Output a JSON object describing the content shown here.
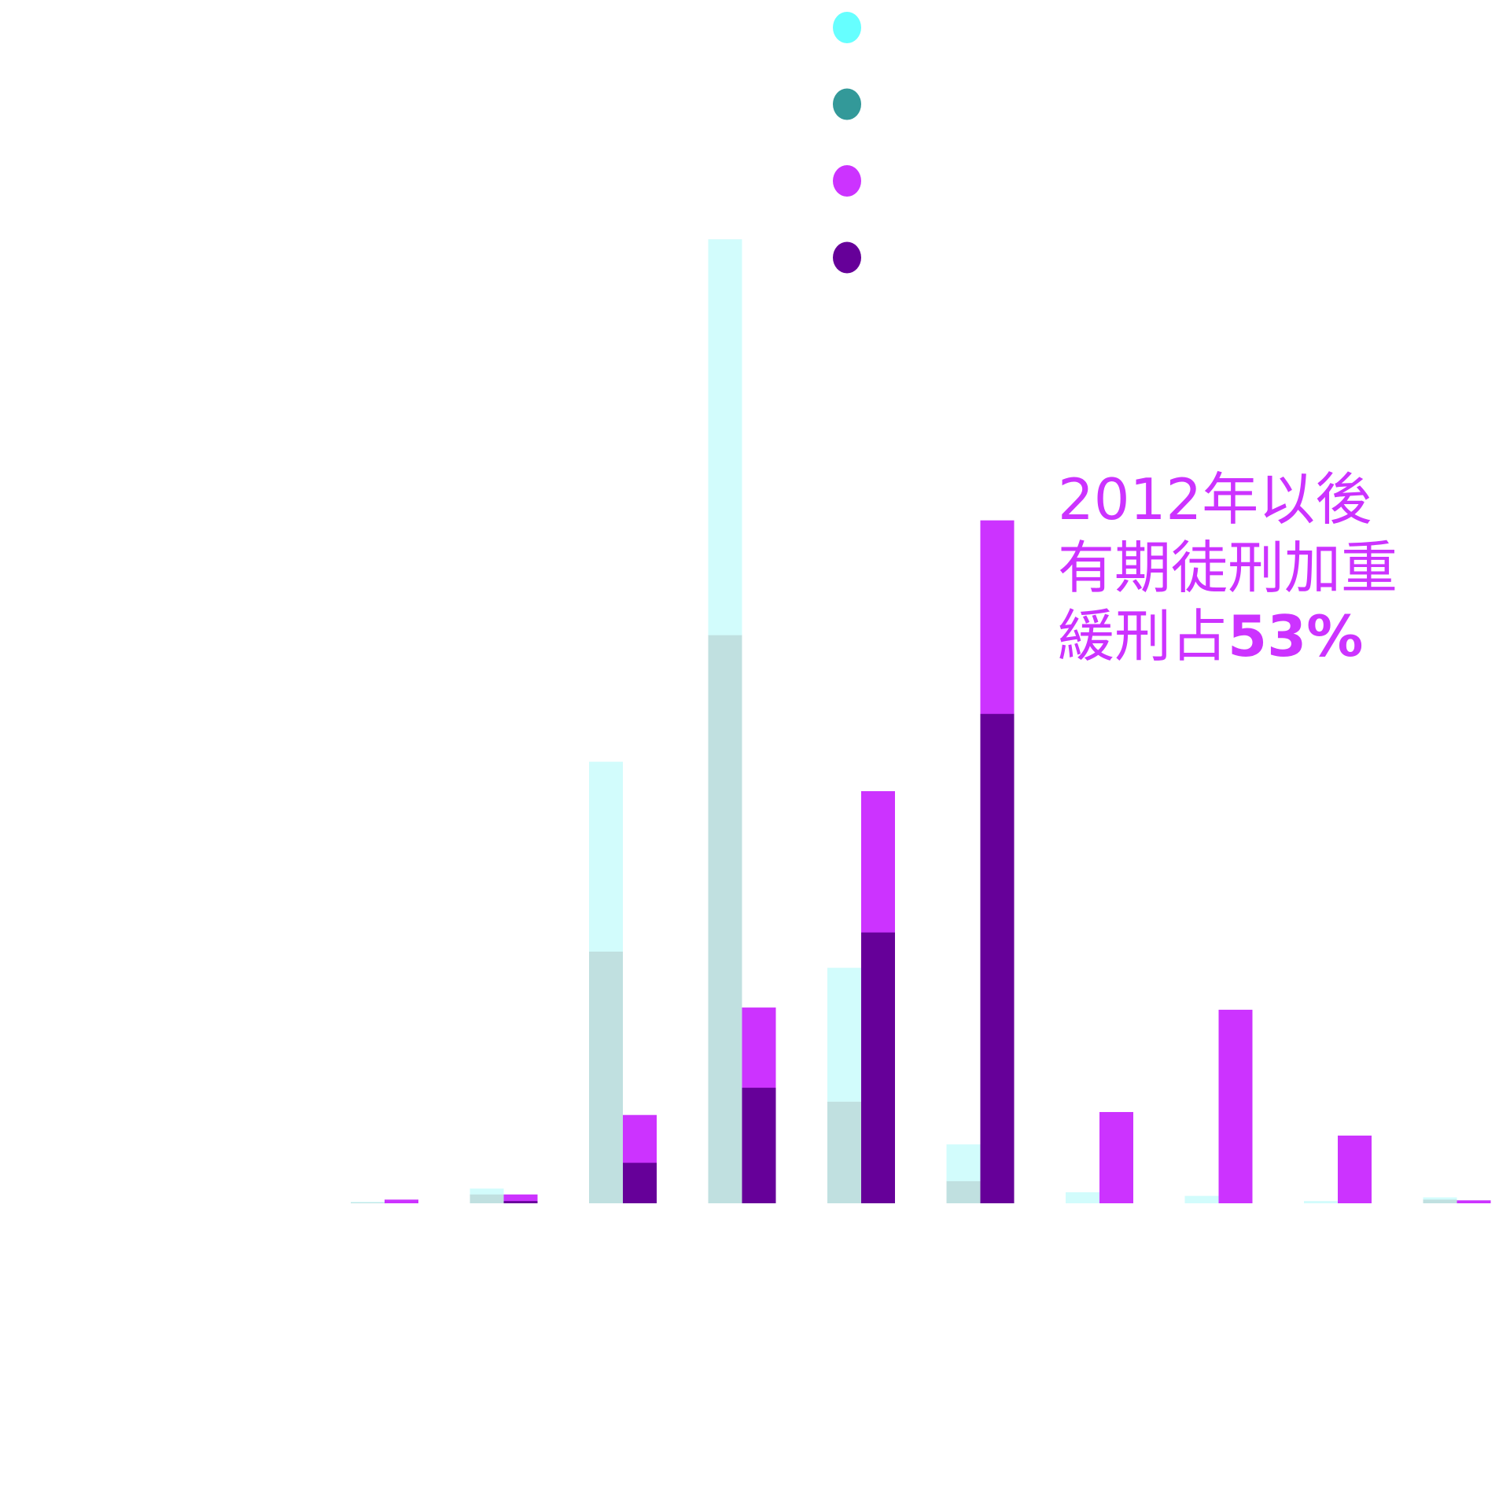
{
  "chart_data": {
    "type": "bar",
    "categories": [
      "",
      "",
      "",
      "",
      "",
      "",
      "",
      "",
      "",
      ""
    ],
    "series": [
      {
        "group": "before",
        "layer": "total",
        "color": "#d2fcfc",
        "values": [
          2,
          20,
          600,
          1310,
          320,
          80,
          15,
          10,
          3,
          8
        ]
      },
      {
        "group": "before",
        "layer": "suspended",
        "color": "#c0e0e0",
        "values": [
          1,
          12,
          342,
          772,
          138,
          30,
          0,
          0,
          0,
          5
        ]
      },
      {
        "group": "after",
        "layer": "total",
        "color": "#cc33ff",
        "values": [
          5,
          12,
          120,
          266,
          560,
          928,
          124,
          263,
          92,
          4
        ]
      },
      {
        "group": "after",
        "layer": "suspended",
        "color": "#660099",
        "values": [
          0,
          3,
          55,
          157,
          368,
          665,
          0,
          0,
          0,
          0
        ]
      }
    ],
    "legend": {
      "placement": "top",
      "markers": [
        {
          "color": "#66ffff"
        },
        {
          "color": "#339999"
        },
        {
          "color": "#cc33ff"
        },
        {
          "color": "#660099"
        }
      ]
    },
    "ylim": [
      0,
      1400
    ],
    "grid": false,
    "annotation": {
      "lines": [
        "2012年以後",
        "有期徒刑加重",
        "緩刑占"
      ],
      "percent": "53%",
      "color": "#cc33ff"
    }
  }
}
